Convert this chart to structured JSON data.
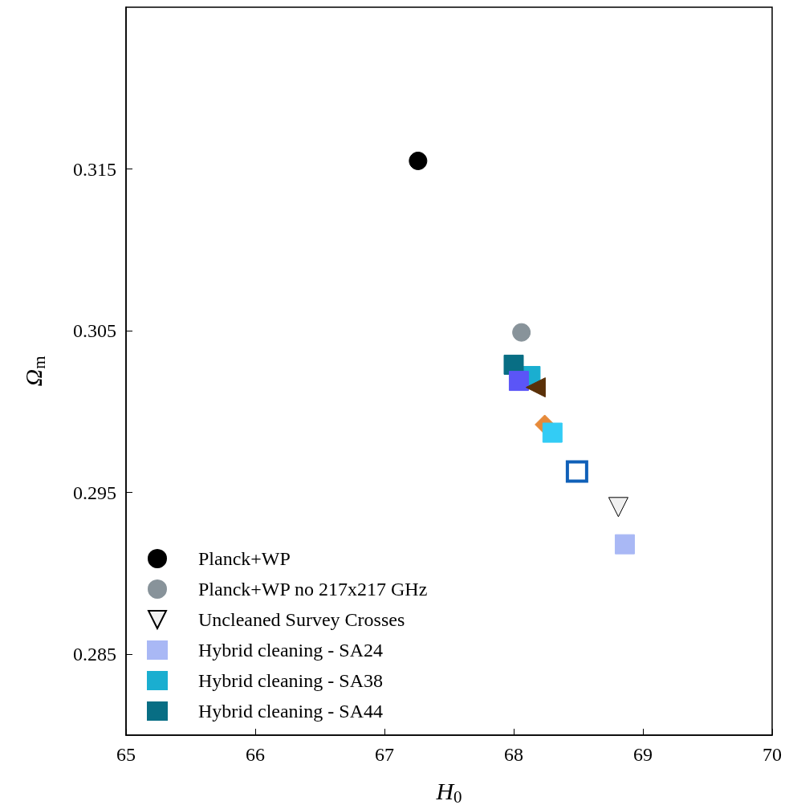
{
  "chart_data": {
    "type": "scatter",
    "xlabel": "H$_{0}$",
    "ylabel": "Ω$_{m}$",
    "xlim": [
      65,
      70
    ],
    "ylim": [
      0.28,
      0.325
    ],
    "xticks": [
      65,
      66,
      67,
      68,
      69,
      70
    ],
    "yticks": [
      0.285,
      0.295,
      0.305,
      0.315
    ],
    "grid": false,
    "legend": "bottom left",
    "series": [
      {
        "name": "Planck+WP",
        "color": "#000000",
        "marker": "circle",
        "x": [
          67.26
        ],
        "values": [
          0.3155
        ]
      },
      {
        "name": "Planck+WP no 217x217 GHz",
        "color": "#88939a",
        "marker": "circle",
        "x": [
          68.06
        ],
        "values": [
          0.3049
        ]
      },
      {
        "name": "Uncleaned Survey Crosses",
        "color": "#f0f0f0",
        "marker": "triangle_down",
        "x": [
          68.81
        ],
        "values": [
          0.2941
        ]
      },
      {
        "name": "Hybrid cleaning - SA24",
        "color": "#a9b8f5",
        "marker": "square",
        "x": [
          68.86
        ],
        "values": [
          0.2918
        ]
      },
      {
        "name": "Hybrid cleaning - SA38",
        "color": "#1aaed0",
        "marker": "square",
        "x": [
          68.13
        ],
        "values": [
          0.3022
        ]
      },
      {
        "name": "Hybrid cleaning - SA44",
        "color": "#086e84",
        "marker": "square",
        "x": [
          68.0
        ],
        "values": [
          0.3029
        ]
      },
      {
        "color": "#5b55f7",
        "marker": "square",
        "x": [
          68.04
        ],
        "values": [
          0.3019
        ]
      },
      {
        "color": "#5a3008",
        "marker": "triangle_left",
        "x": [
          68.17
        ],
        "values": [
          0.3015
        ]
      },
      {
        "color": "#e68a3a",
        "marker": "diamond",
        "x": [
          68.24
        ],
        "values": [
          0.2992
        ]
      },
      {
        "color": "#33ccf5",
        "marker": "square",
        "x": [
          68.3
        ],
        "values": [
          0.2987
        ]
      },
      {
        "color": "#1060b8",
        "marker": "square_open",
        "x": [
          68.49
        ],
        "values": [
          0.2963
        ]
      }
    ]
  }
}
